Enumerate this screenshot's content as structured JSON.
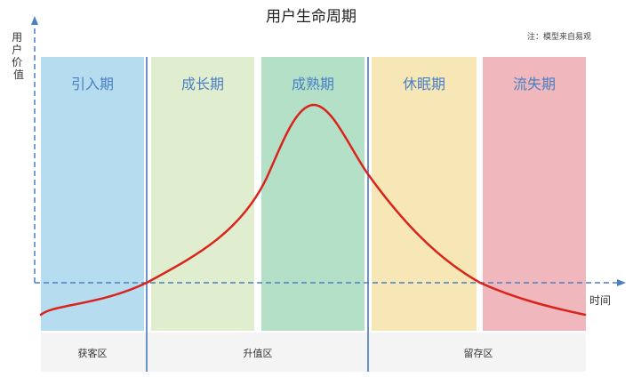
{
  "title": "用户生命周期",
  "note": "注：模型来自易观",
  "y_axis_label": "用户价值",
  "x_axis_label": "时间",
  "stages": [
    {
      "label": "引入期",
      "color": "#b6dcf0"
    },
    {
      "label": "成长期",
      "color": "#e1edcf"
    },
    {
      "label": "成熟期",
      "color": "#b5e0c8"
    },
    {
      "label": "休眠期",
      "color": "#f8e7b6"
    },
    {
      "label": "流失期",
      "color": "#f0b8bc"
    }
  ],
  "zones": [
    {
      "label": "获客区"
    },
    {
      "label": "升值区"
    },
    {
      "label": "留存区"
    }
  ],
  "colors": {
    "axis": "#4a7fc4",
    "curve": "#d9231b",
    "divider": "#3a6fbf",
    "zone_band": "#f4f4f4"
  }
}
